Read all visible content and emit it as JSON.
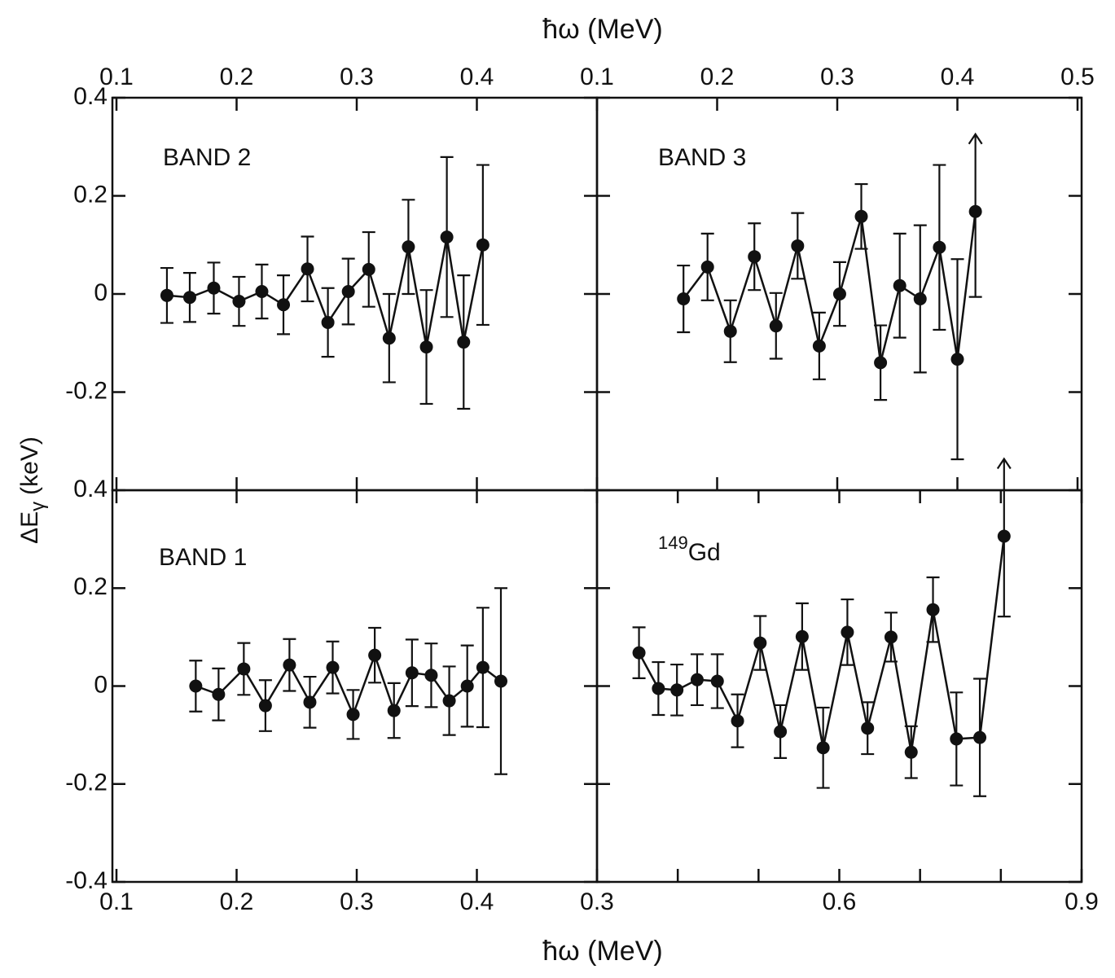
{
  "xlabel_top": "ħω  (MeV)",
  "xlabel_bottom": "ħω  (MeV)",
  "ylabel": "ΔE",
  "ylabel_sub": "γ",
  "ylabel_unit": "(keV)",
  "chart_data": [
    {
      "type": "line",
      "label": "BAND 2",
      "xlim": [
        0.1,
        0.5
      ],
      "xticks": [
        0.1,
        0.2,
        0.3,
        0.4
      ],
      "xtick_labels": "top",
      "ylim": [
        -0.4,
        0.4
      ],
      "yticks": [
        0.4,
        0.2,
        0,
        -0.2
      ],
      "ytick_labels": true,
      "grid": false,
      "x": [
        0.142,
        0.161,
        0.181,
        0.202,
        0.221,
        0.239,
        0.259,
        0.276,
        0.293,
        0.31,
        0.327,
        0.343,
        0.358,
        0.375,
        0.389,
        0.405
      ],
      "series": [
        {
          "color": "#111111",
          "values": [
            -0.003,
            -0.007,
            0.012,
            -0.015,
            0.005,
            -0.022,
            0.051,
            -0.058,
            0.005,
            0.05,
            -0.09,
            0.096,
            -0.108,
            0.116,
            -0.098,
            0.1
          ],
          "errors": [
            0.056,
            0.05,
            0.052,
            0.05,
            0.055,
            0.06,
            0.066,
            0.07,
            0.067,
            0.076,
            0.09,
            0.096,
            0.116,
            0.163,
            0.136,
            0.163
          ]
        }
      ]
    },
    {
      "type": "line",
      "label": "BAND 3",
      "xlim": [
        0.1,
        0.5
      ],
      "xticks": [
        0.1,
        0.2,
        0.3,
        0.4,
        0.5
      ],
      "xtick_labels": "top",
      "ylim": [
        -0.4,
        0.4
      ],
      "yticks": [
        0.4,
        0.2,
        0,
        -0.2
      ],
      "ytick_labels": false,
      "grid": false,
      "x": [
        0.172,
        0.192,
        0.211,
        0.231,
        0.249,
        0.267,
        0.285,
        0.302,
        0.32,
        0.336,
        0.352,
        0.369,
        0.385,
        0.4,
        0.415
      ],
      "series": [
        {
          "color": "#111111",
          "values": [
            -0.01,
            0.055,
            -0.076,
            0.076,
            -0.065,
            0.098,
            -0.106,
            0,
            0.158,
            -0.14,
            0.017,
            -0.01,
            0.095,
            -0.133,
            0.168
          ],
          "errors": [
            0.068,
            0.068,
            0.063,
            0.068,
            0.067,
            0.067,
            0.068,
            0.065,
            0.066,
            0.076,
            0.106,
            0.15,
            0.168,
            0.204,
            0.174
          ],
          "arrow_up": [
            14
          ]
        }
      ]
    },
    {
      "type": "line",
      "label": "BAND 1",
      "xlim": [
        0.1,
        0.5
      ],
      "xticks": [
        0.1,
        0.2,
        0.3,
        0.4
      ],
      "xtick_labels": "bottom",
      "ylim": [
        -0.4,
        0.4
      ],
      "yticks": [
        0.4,
        0.2,
        0,
        -0.2,
        -0.4
      ],
      "ytick_labels": true,
      "grid": false,
      "x": [
        0.166,
        0.185,
        0.206,
        0.224,
        0.244,
        0.261,
        0.28,
        0.297,
        0.315,
        0.331,
        0.346,
        0.362,
        0.377,
        0.392,
        0.405,
        0.42
      ],
      "series": [
        {
          "color": "#111111",
          "values": [
            0,
            -0.017,
            0.035,
            -0.04,
            0.043,
            -0.033,
            0.038,
            -0.058,
            0.063,
            -0.05,
            0.027,
            0.022,
            -0.03,
            0,
            0.038,
            0.01
          ],
          "errors": [
            0.052,
            0.053,
            0.053,
            0.052,
            0.053,
            0.052,
            0.053,
            0.05,
            0.056,
            0.056,
            0.068,
            0.065,
            0.07,
            0.083,
            0.122,
            0.19
          ]
        }
      ]
    },
    {
      "type": "line",
      "label_sup": "149",
      "label": "Gd",
      "xlim": [
        0.3,
        0.9
      ],
      "xticks": [
        0.3,
        0.6,
        0.9
      ],
      "xminorticks": [
        0.4,
        0.5,
        0.7,
        0.8
      ],
      "xtick_labels": "bottom",
      "ylim": [
        -0.4,
        0.4
      ],
      "yticks": [
        0.4,
        0.2,
        0,
        -0.2,
        -0.4
      ],
      "ytick_labels": false,
      "grid": false,
      "x": [
        0.352,
        0.376,
        0.399,
        0.424,
        0.449,
        0.474,
        0.502,
        0.527,
        0.554,
        0.58,
        0.61,
        0.635,
        0.664,
        0.689,
        0.716,
        0.745,
        0.774,
        0.804
      ],
      "series": [
        {
          "color": "#111111",
          "values": [
            0.068,
            -0.005,
            -0.008,
            0.013,
            0.01,
            -0.071,
            0.088,
            -0.093,
            0.101,
            -0.126,
            0.11,
            -0.086,
            0.1,
            -0.135,
            0.156,
            -0.108,
            -0.105,
            0.306
          ],
          "errors": [
            0.052,
            0.054,
            0.052,
            0.052,
            0.055,
            0.054,
            0.055,
            0.054,
            0.068,
            0.082,
            0.067,
            0.053,
            0.05,
            0.053,
            0.066,
            0.095,
            0.12,
            0.164
          ],
          "arrow_up": [
            17
          ]
        }
      ]
    }
  ]
}
